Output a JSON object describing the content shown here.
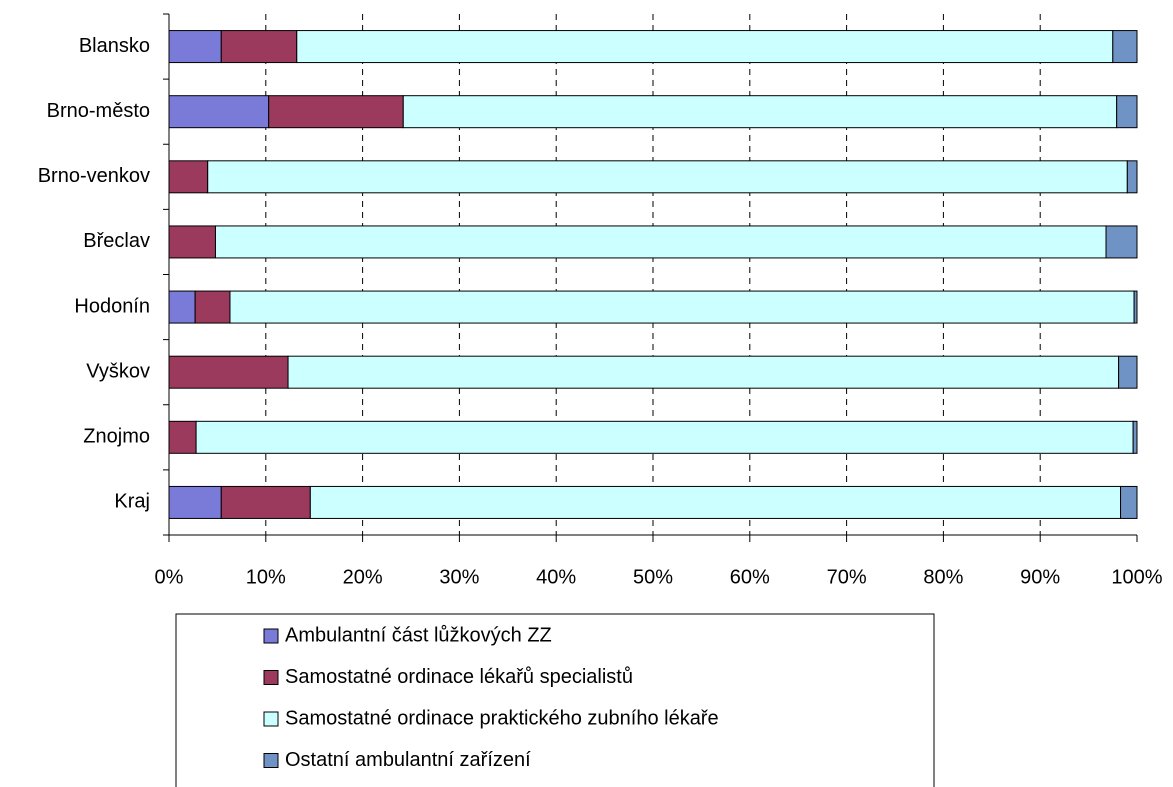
{
  "chart_data": {
    "type": "stacked_bar_horizontal",
    "categories": [
      "Blansko",
      "Brno-město",
      "Brno-venkov",
      "Břeclav",
      "Hodonín",
      "Vyškov",
      "Znojmo",
      "Kraj"
    ],
    "series": [
      {
        "name": "Ambulantní část lůžkových ZZ",
        "color": "#7a7ad8",
        "values": [
          5.4,
          10.3,
          0,
          0,
          2.7,
          0,
          0,
          5.4
        ]
      },
      {
        "name": "Samostatné ordinace lékařů specialistů",
        "color": "#9c3a5e",
        "values": [
          7.8,
          13.9,
          4.0,
          4.8,
          3.6,
          12.3,
          2.8,
          9.2
        ]
      },
      {
        "name": "Samostatné ordinace praktického zubního lékaře",
        "color": "#ccffff",
        "values": [
          84.3,
          73.7,
          95.0,
          92.0,
          93.4,
          85.8,
          96.8,
          83.7
        ]
      },
      {
        "name": "Ostatní ambulantní zařízení",
        "color": "#6f93c4",
        "values": [
          2.5,
          2.1,
          1.0,
          3.2,
          0.3,
          1.9,
          0.4,
          1.7
        ]
      }
    ],
    "xlim": [
      0,
      100
    ],
    "xticks": [
      {
        "value": 0,
        "label": "0%"
      },
      {
        "value": 10,
        "label": "10%"
      },
      {
        "value": 20,
        "label": "20%"
      },
      {
        "value": 30,
        "label": "30%"
      },
      {
        "value": 40,
        "label": "40%"
      },
      {
        "value": 50,
        "label": "50%"
      },
      {
        "value": 60,
        "label": "60%"
      },
      {
        "value": 70,
        "label": "70%"
      },
      {
        "value": 80,
        "label": "80%"
      },
      {
        "value": 90,
        "label": "90%"
      },
      {
        "value": 100,
        "label": "100%"
      }
    ],
    "grid": true,
    "legend": "bottom"
  }
}
